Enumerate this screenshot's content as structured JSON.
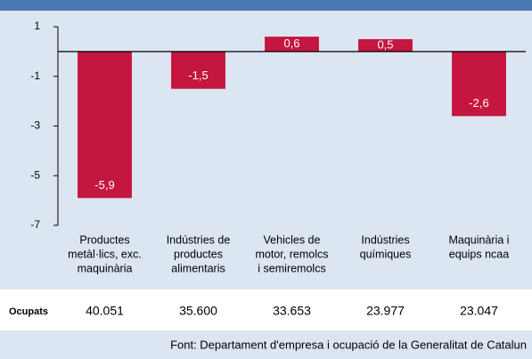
{
  "chart_data": {
    "type": "bar",
    "categories": [
      [
        "Productes",
        "metàl·lics, exc.",
        "maquinària"
      ],
      [
        "Indústries de",
        "productes",
        "alimentaris"
      ],
      [
        "Vehicles de",
        "motor, remolcs",
        "i semiremolcs"
      ],
      [
        "Indústries",
        "químiques"
      ],
      [
        "Maquinària i",
        "equips ncaa"
      ]
    ],
    "values": [
      -5.9,
      -1.5,
      0.6,
      0.5,
      -2.6
    ],
    "value_labels": [
      "-5,9",
      "-1,5",
      "0,6",
      "0,5",
      "-2,6"
    ],
    "color": "#c4163f",
    "ylim": [
      -7,
      1
    ],
    "yticks": [
      -7,
      -5,
      -3,
      -1,
      1
    ],
    "grid": false
  },
  "table": {
    "label": "Ocupats",
    "values": [
      "40.051",
      "35.600",
      "33.653",
      "23.977",
      "23.047"
    ]
  },
  "footer": "Font: Departament d'empresa i ocupació de la Generalitat de Catalun"
}
